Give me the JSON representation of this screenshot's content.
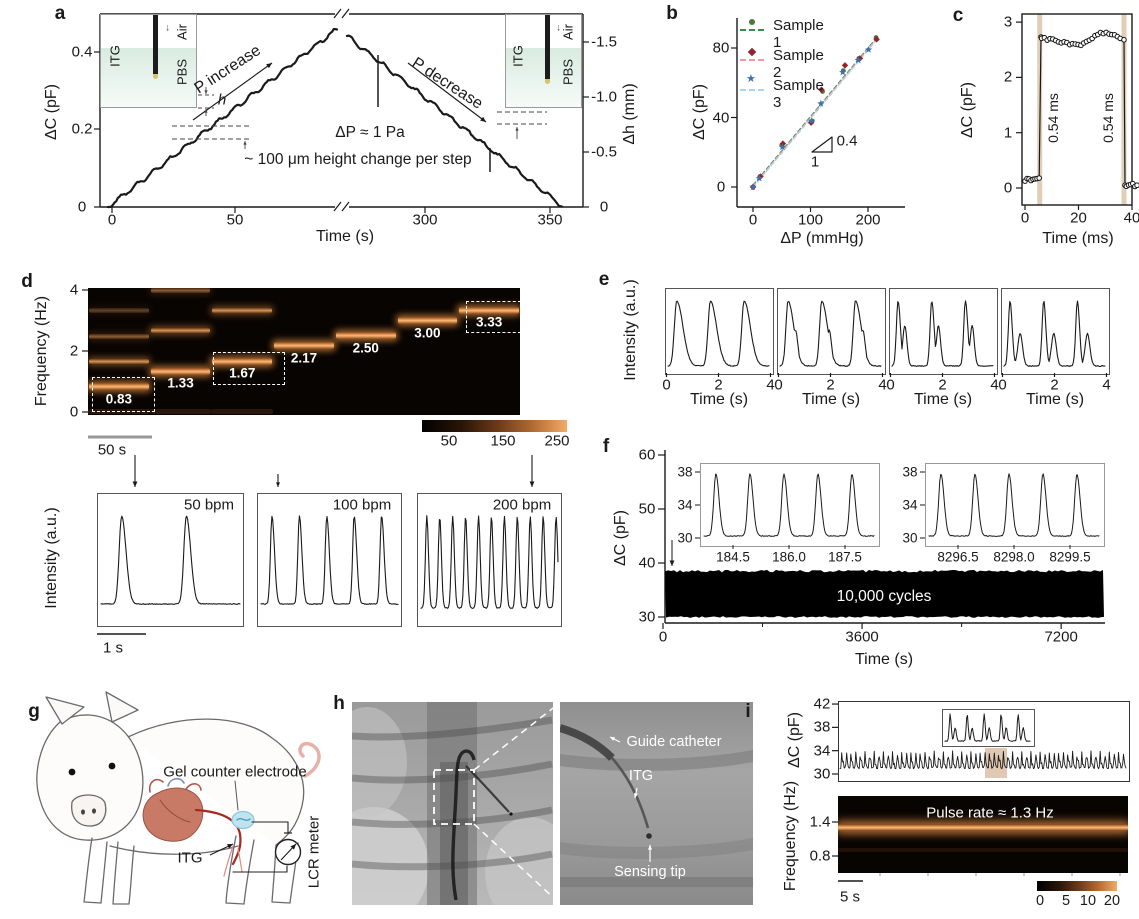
{
  "figure": {
    "panels": {
      "a": {
        "letter": "a"
      },
      "b": {
        "letter": "b"
      },
      "c": {
        "letter": "c"
      },
      "d": {
        "letter": "d"
      },
      "e": {
        "letter": "e"
      },
      "f": {
        "letter": "f"
      },
      "g": {
        "letter": "g",
        "labels": {
          "gel": "Gel counter electrode",
          "itg": "ITG",
          "lcr": "LCR meter"
        }
      },
      "h": {
        "letter": "h",
        "labels": {
          "guide": "Guide catheter",
          "itg": "ITG",
          "tip": "Sensing tip"
        }
      },
      "i": {
        "letter": "i"
      }
    }
  },
  "chart_data": [
    {
      "id": "a",
      "type": "line",
      "xlabel": "Time (s)",
      "ylabel": "ΔC (pF)",
      "ylabel_right": "Δh (mm)",
      "x_ticks": [
        "0",
        "50",
        "300",
        "350"
      ],
      "y_ticks": [
        "0.4",
        "0.2",
        "0"
      ],
      "y_ticks_right": [
        "-1.5",
        "-1.0",
        "-0.5",
        "0"
      ],
      "x_axis_break": true,
      "ylim": [
        0,
        0.48
      ],
      "ylim_right": [
        0,
        -1.6
      ],
      "series_description": "stepwise staircase: capacitance rises ~0 to 0.46 pF as pressure increases, then falls back; ~100 um height change per step",
      "steps_up": 14,
      "steps_down": 13,
      "peak_dC_pF": 0.46,
      "annotations": [
        "P increase",
        "P decrease",
        "ΔP ≈ 1 Pa",
        "~ 100 μm height change per step",
        "h"
      ],
      "insets": [
        {
          "labels": [
            "ITG",
            "Air",
            "PBS"
          ]
        },
        {
          "labels": [
            "ITG",
            "Air",
            "PBS"
          ]
        }
      ]
    },
    {
      "id": "b",
      "type": "scatter",
      "xlabel": "ΔP (mmHg)",
      "ylabel": "ΔC (pF)",
      "x_ticks": [
        0,
        100,
        200
      ],
      "y_ticks": [
        0,
        40,
        80
      ],
      "slope": {
        "rise": "0.4",
        "run": "1"
      },
      "series": [
        {
          "name": "Sample 1",
          "marker": "circle",
          "color": "#4c7a33",
          "line_color": "#3f8a4f",
          "points": [
            [
              0,
              0
            ],
            [
              12,
              6
            ],
            [
              50,
              24
            ],
            [
              103,
              38
            ],
            [
              121,
              55
            ],
            [
              157,
              67
            ],
            [
              184,
              74
            ],
            [
              214,
              86
            ]
          ]
        },
        {
          "name": "Sample 2",
          "marker": "diamond",
          "color": "#93242c",
          "line_color": "#f09b9b",
          "points": [
            [
              0,
              0
            ],
            [
              13,
              6
            ],
            [
              52,
              25
            ],
            [
              101,
              37
            ],
            [
              119,
              56
            ],
            [
              160,
              70
            ],
            [
              186,
              74
            ],
            [
              215,
              85
            ]
          ]
        },
        {
          "name": "Sample 3",
          "marker": "star",
          "color": "#3e6fae",
          "line_color": "#a9d4ea",
          "points": [
            [
              0,
              0
            ],
            [
              11,
              5
            ],
            [
              51,
              23
            ],
            [
              102,
              38
            ],
            [
              118,
              48
            ],
            [
              156,
              66
            ],
            [
              183,
              73
            ],
            [
              201,
              79
            ]
          ]
        }
      ]
    },
    {
      "id": "c",
      "type": "line",
      "xlabel": "Time (ms)",
      "ylabel": "ΔC (pF)",
      "x_ticks": [
        0,
        20,
        40
      ],
      "y_ticks": [
        0,
        1,
        2,
        3
      ],
      "pulse": {
        "baseline_pF": 0.15,
        "plateau_pF": 2.7,
        "rise_at_ms": 5.5,
        "fall_at_ms": 37,
        "end_pF": 0.05
      },
      "bands": [
        {
          "label": "0.54 ms",
          "at_ms": 5.5
        },
        {
          "label": "0.54 ms",
          "at_ms": 37
        }
      ]
    },
    {
      "id": "d",
      "type": "heatmap",
      "subtype": "spectrogram",
      "ylabel": "Frequency (Hz)",
      "y_ticks": [
        0,
        2,
        4
      ],
      "segments": [
        {
          "freq_hz": 0.83,
          "label": "0.83",
          "boxed": true
        },
        {
          "freq_hz": 1.33,
          "label": "1.33",
          "boxed": false
        },
        {
          "freq_hz": 1.67,
          "label": "1.67",
          "boxed": true
        },
        {
          "freq_hz": 2.17,
          "label": "2.17",
          "boxed": false
        },
        {
          "freq_hz": 2.5,
          "label": "2.50",
          "boxed": false
        },
        {
          "freq_hz": 3.0,
          "label": "3.00",
          "boxed": false
        },
        {
          "freq_hz": 3.33,
          "label": "3.33",
          "boxed": true
        }
      ],
      "colorbar_ticks": [
        50,
        150,
        250
      ],
      "scalebar": "50 s",
      "traces": {
        "ylabel": "Intensity (a.u.)",
        "scalebar": "1 s",
        "items": [
          {
            "label": "50 bpm",
            "peaks": 2
          },
          {
            "label": "100 bpm",
            "peaks": 5
          },
          {
            "label": "200 bpm",
            "peaks": 11
          }
        ]
      }
    },
    {
      "id": "e",
      "type": "line",
      "ylabel": "Intensity (a.u.)",
      "xlabel": "Time (s)",
      "x_ticks": [
        0,
        2,
        4
      ],
      "subplots": [
        {
          "cycles": 3,
          "morphology": "smooth"
        },
        {
          "cycles": 3,
          "morphology": "shoulder"
        },
        {
          "cycles": 3,
          "morphology": "dicrotic"
        },
        {
          "cycles": 3,
          "morphology": "double-peak"
        }
      ]
    },
    {
      "id": "f",
      "type": "line",
      "xlabel": "Time (s)",
      "ylabel": "ΔC (pF)",
      "x_ticks": [
        0,
        3600,
        7200
      ],
      "y_ticks": [
        30,
        40,
        50,
        60
      ],
      "band": {
        "min_pF": 30,
        "max_pF": 38.5
      },
      "label": "10,000 cycles",
      "insets": [
        {
          "y_ticks": [
            38,
            34,
            30
          ],
          "x_ticks": [
            "184.5",
            "186.0",
            "187.5"
          ],
          "peaks": 5
        },
        {
          "y_ticks": [
            38,
            34,
            30
          ],
          "x_ticks": [
            "8296.5",
            "8298.0",
            "8299.5"
          ],
          "peaks": 5
        }
      ]
    },
    {
      "id": "i",
      "type": "line+heatmap",
      "top": {
        "ylabel": "ΔC (pF)",
        "y_ticks": [
          42,
          38,
          34,
          30
        ],
        "baseline_pF": 31,
        "peak_pF": 33.8,
        "cycles": 62
      },
      "bottom": {
        "ylabel": "Frequency (Hz)",
        "y_ticks": [
          "1.4",
          "0.8"
        ],
        "band_hz": 1.3,
        "annotation": "Pulse rate ≈ 1.3 Hz",
        "colorbar_ticks": [
          0,
          5,
          10,
          20
        ],
        "scalebar": "5 s"
      }
    }
  ]
}
